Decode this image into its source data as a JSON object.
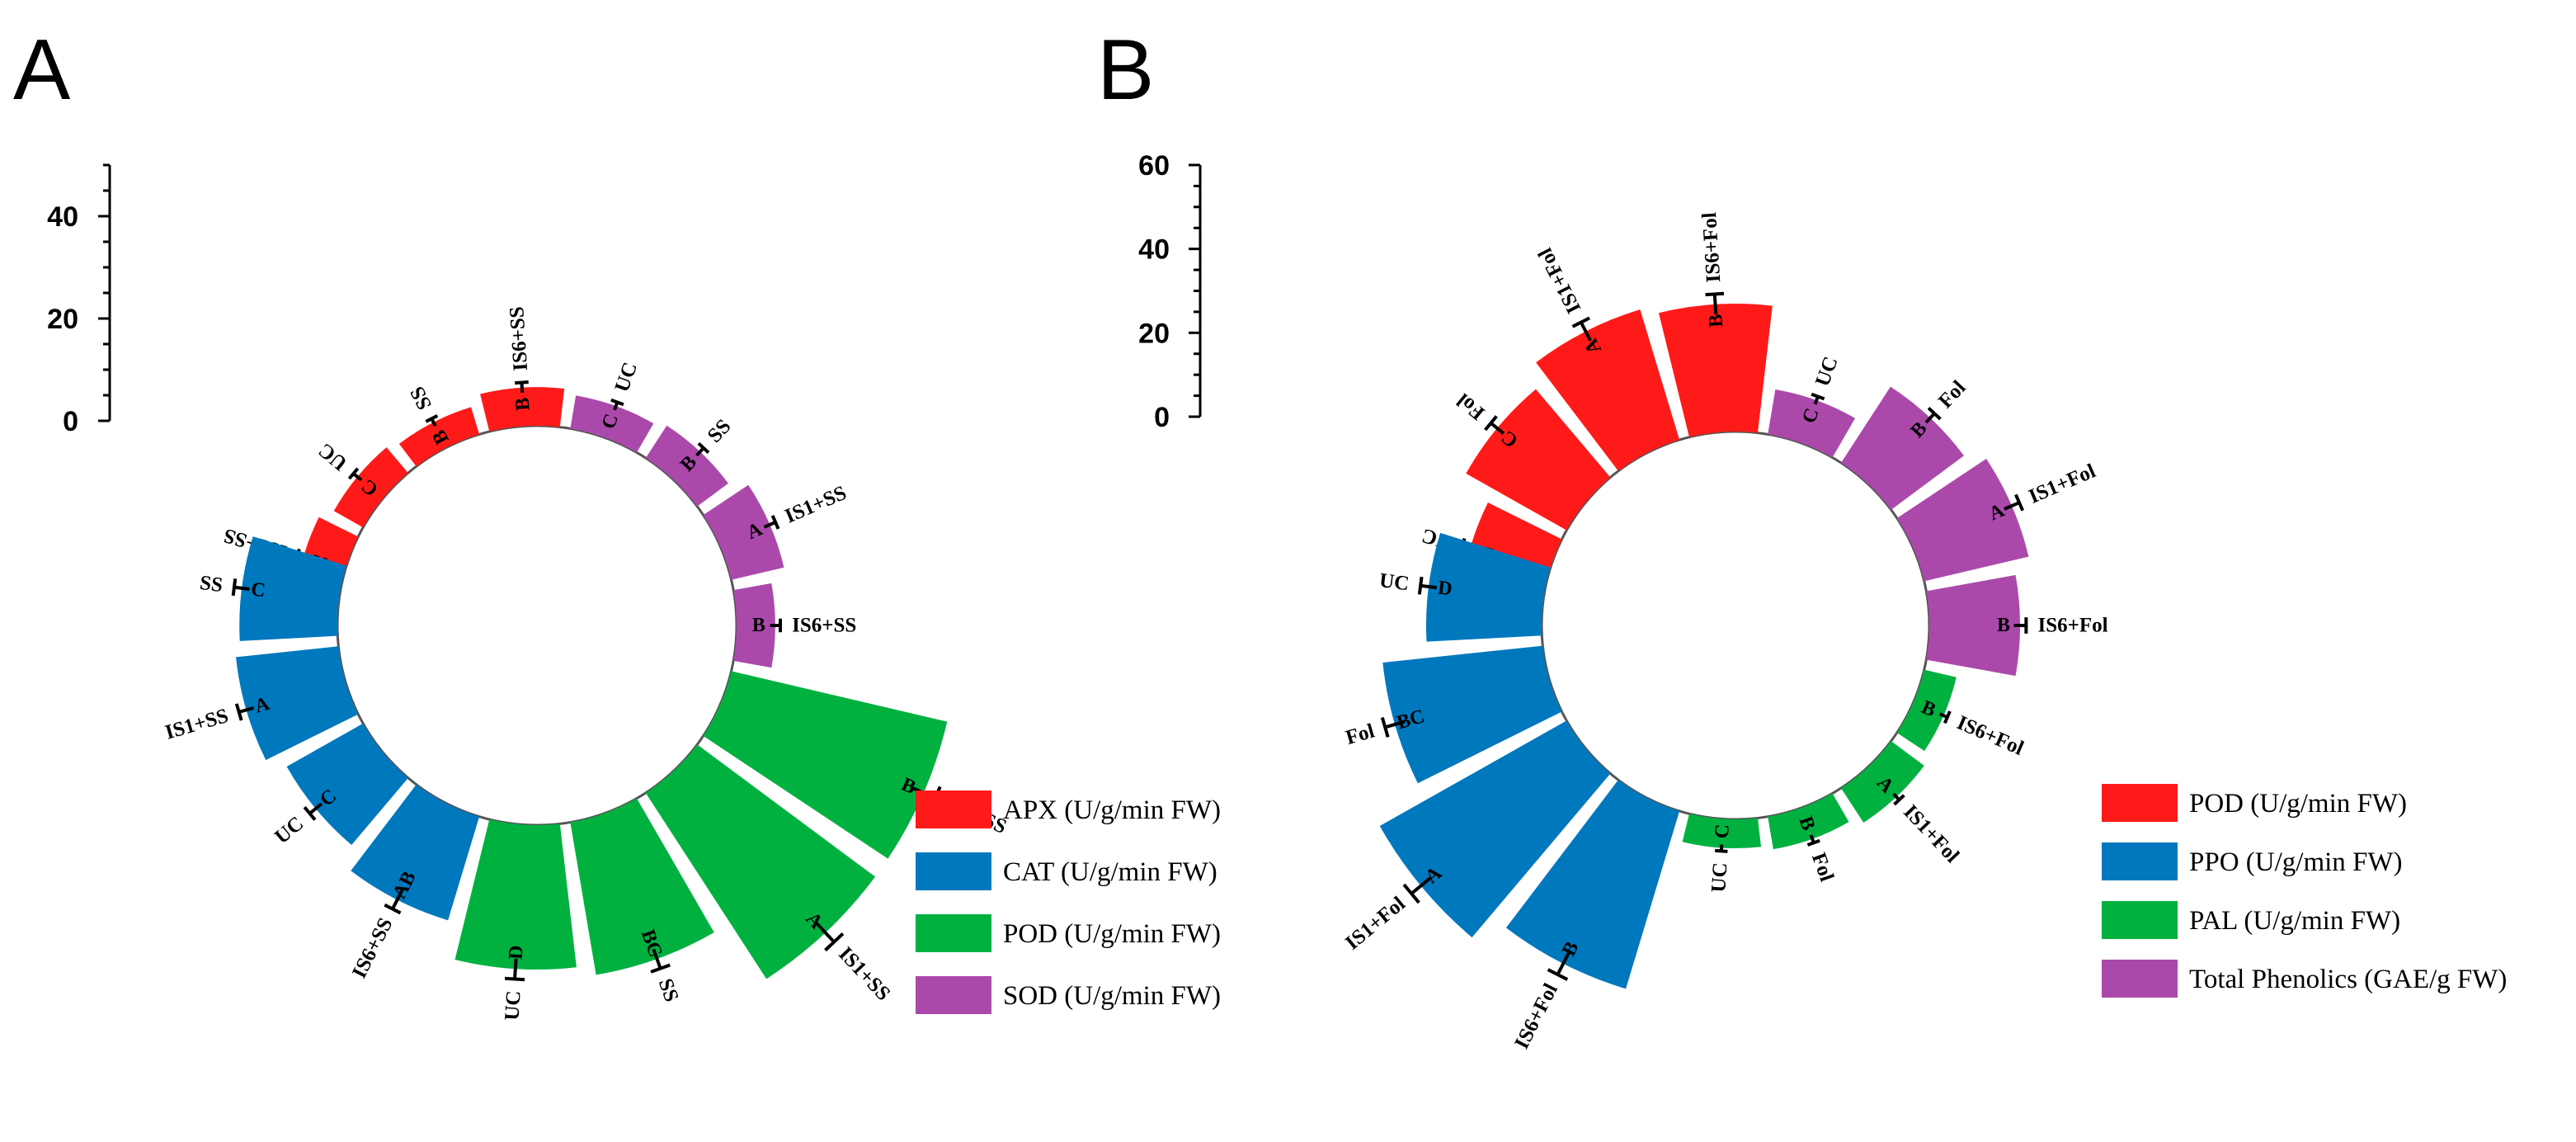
{
  "chart_data": [
    {
      "panel": "A",
      "type": "radial-bar",
      "ylim": [
        0,
        50
      ],
      "yticks": [
        "0",
        "20",
        "40"
      ],
      "groups": [
        {
          "series": "APX (U/g/min FW)",
          "color": "#ff1a1a",
          "bars": [
            {
              "category": "IS1+SS",
              "value": 8.5,
              "error": 1.2,
              "letter": "A"
            },
            {
              "category": "UC",
              "value": 6.5,
              "error": 1.0,
              "letter": "C"
            },
            {
              "category": "SS",
              "value": 5.5,
              "error": 0.8,
              "letter": "B"
            },
            {
              "category": "IS6+SS",
              "value": 7.5,
              "error": 1.0,
              "letter": "B"
            }
          ]
        },
        {
          "series": "SOD (U/g/min FW)",
          "color": "#ab49ab",
          "bars": [
            {
              "category": "UC",
              "value": 6.5,
              "error": 0.8,
              "letter": "C"
            },
            {
              "category": "SS",
              "value": 7.5,
              "error": 1.0,
              "letter": "B"
            },
            {
              "category": "IS1+SS",
              "value": 10.5,
              "error": 1.2,
              "letter": "A"
            },
            {
              "category": "IS6+SS",
              "value": 7.5,
              "error": 1.0,
              "letter": "B"
            }
          ]
        },
        {
          "series": "POD (U/g/min FW)",
          "color": "#00b140",
          "bars": [
            {
              "category": "IS6+SS",
              "value": 43,
              "error": 2.5,
              "letter": "B"
            },
            {
              "category": "IS1+SS",
              "value": 43,
              "error": 2.5,
              "letter": "A"
            },
            {
              "category": "SS",
              "value": 30,
              "error": 2.0,
              "letter": "BC"
            },
            {
              "category": "UC",
              "value": 28,
              "error": 2.0,
              "letter": "D"
            }
          ]
        },
        {
          "series": "CAT (U/g/min FW)",
          "color": "#0078bd",
          "bars": [
            {
              "category": "IS6+SS",
              "value": 21,
              "error": 2.0,
              "letter": "AB"
            },
            {
              "category": "UC",
              "value": 17,
              "error": 1.5,
              "letter": "C"
            },
            {
              "category": "IS1+SS",
              "value": 20,
              "error": 1.5,
              "letter": "A"
            },
            {
              "category": "SS",
              "value": 19,
              "error": 1.5,
              "letter": "C"
            }
          ]
        }
      ],
      "legend": [
        {
          "label": "APX (U/g/min FW)",
          "color": "#ff1a1a"
        },
        {
          "label": "CAT (U/g/min FW)",
          "color": "#0078bd"
        },
        {
          "label": "POD (U/g/min FW)",
          "color": "#00b140"
        },
        {
          "label": "SOD (U/g/min FW)",
          "color": "#ab49ab"
        }
      ],
      "legend_position": "bottom-right"
    },
    {
      "panel": "B",
      "type": "radial-bar",
      "ylim": [
        0,
        60
      ],
      "yticks": [
        "0",
        "20",
        "40",
        "60"
      ],
      "groups": [
        {
          "series": "POD (U/g/min FW)",
          "color": "#ff1a1a",
          "bars": [
            {
              "category": "UC",
              "value": 20,
              "error": 2.0,
              "letter": "D"
            },
            {
              "category": "Fol",
              "value": 28,
              "error": 2.0,
              "letter": "C"
            },
            {
              "category": "IS1+Fol",
              "value": 33,
              "error": 2.5,
              "letter": "A"
            },
            {
              "category": "IS6+Fol",
              "value": 31,
              "error": 2.5,
              "letter": "B"
            }
          ]
        },
        {
          "series": "Total Phenolics (GAE/g FW)",
          "color": "#ab49ab",
          "bars": [
            {
              "category": "UC",
              "value": 11,
              "error": 1.0,
              "letter": "C"
            },
            {
              "category": "Fol",
              "value": 22,
              "error": 1.5,
              "letter": "B"
            },
            {
              "category": "IS1+Fol",
              "value": 26,
              "error": 2.0,
              "letter": "A"
            },
            {
              "category": "IS6+Fol",
              "value": 22,
              "error": 1.5,
              "letter": "B"
            }
          ]
        },
        {
          "series": "PAL (U/g/min FW)",
          "color": "#00b140",
          "bars": [
            {
              "category": "IS6+Fol",
              "value": 8,
              "error": 1.0,
              "letter": "B"
            },
            {
              "category": "IS1+Fol",
              "value": 10,
              "error": 1.0,
              "letter": "A"
            },
            {
              "category": "Fol",
              "value": 8,
              "error": 1.0,
              "letter": "B"
            },
            {
              "category": "UC",
              "value": 7,
              "error": 0.8,
              "letter": "C"
            }
          ]
        },
        {
          "series": "PPO (U/g/min FW)",
          "color": "#0078bd",
          "bars": [
            {
              "category": "IS6+Fol",
              "value": 45,
              "error": 3.0,
              "letter": "B"
            },
            {
              "category": "IS1+Fol",
              "value": 52,
              "error": 3.0,
              "letter": "A"
            },
            {
              "category": "Fol",
              "value": 39,
              "error": 2.5,
              "letter": "BC"
            },
            {
              "category": "UC",
              "value": 28,
              "error": 2.0,
              "letter": "D"
            }
          ]
        }
      ],
      "legend": [
        {
          "label": "POD (U/g/min FW)",
          "color": "#ff1a1a"
        },
        {
          "label": "PPO (U/g/min FW)",
          "color": "#0078bd"
        },
        {
          "label": "PAL (U/g/min FW)",
          "color": "#00b140"
        },
        {
          "label": "Total Phenolics (GAE/g FW)",
          "color": "#ab49ab"
        }
      ],
      "legend_position": "bottom-right"
    }
  ]
}
